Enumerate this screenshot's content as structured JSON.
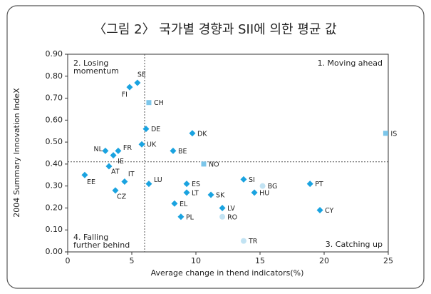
{
  "chart_data": {
    "type": "scatter",
    "title": "〈그림 2〉 국가별 경향과 SII에 의한 평균 값",
    "x_label": "Average change in thend indicators(%)",
    "y_label": "2004 Summary Innovation IndeX",
    "xlim": [
      0,
      25
    ],
    "xticks": [
      0,
      5,
      10,
      15,
      20,
      25
    ],
    "ylim": [
      0,
      0.9
    ],
    "yticks": [
      {
        "value": 0,
        "label": "0.00"
      },
      {
        "value": 0.1,
        "label": "0.10"
      },
      {
        "value": 0.2,
        "label": "0.20"
      },
      {
        "value": 0.3,
        "label": "0.30"
      },
      {
        "value": 0.4,
        "label": "0.40"
      },
      {
        "value": 0.5,
        "label": "0.50"
      },
      {
        "value": 0.6,
        "label": "0.60"
      },
      {
        "value": 0.7,
        "label": "0.70"
      },
      {
        "value": 0.8,
        "label": "0.80"
      },
      {
        "value": 0.9,
        "label": "0.90"
      }
    ],
    "reference_lines": {
      "x": 6,
      "y": 0.41
    },
    "annotations": [
      {
        "lines": [
          "2. Losing",
          "momentum"
        ],
        "corner": "top-left"
      },
      {
        "lines": [
          "1. Moving ahead"
        ],
        "corner": "top-right"
      },
      {
        "lines": [
          "4. Falling",
          "further behind"
        ],
        "corner": "bottom-left"
      },
      {
        "lines": [
          "3. Catching up"
        ],
        "corner": "bottom-right"
      }
    ],
    "series": [
      {
        "marker": "diamond",
        "color": "#1aa3e0",
        "labels": [
          "SE",
          "FI",
          "DE",
          "DK",
          "UK",
          "BE",
          "NL",
          "FR",
          "IE",
          "AT",
          "EE",
          "IT",
          "SI",
          "PT",
          "LU",
          "ES",
          "CZ",
          "LT",
          "HU",
          "SK",
          "EL",
          "LV",
          "CY",
          "PL"
        ],
        "x": [
          5.44,
          4.83,
          6.11,
          9.72,
          5.78,
          8.22,
          2.94,
          3.94,
          3.56,
          3.22,
          1.33,
          4.44,
          13.72,
          18.9,
          6.33,
          9.28,
          3.72,
          9.28,
          14.56,
          11.17,
          8.33,
          12.06,
          19.67,
          8.83
        ],
        "values": [
          0.77,
          0.75,
          0.56,
          0.54,
          0.49,
          0.46,
          0.46,
          0.46,
          0.44,
          0.39,
          0.35,
          0.32,
          0.33,
          0.31,
          0.31,
          0.31,
          0.28,
          0.27,
          0.27,
          0.26,
          0.22,
          0.2,
          0.19,
          0.16
        ]
      },
      {
        "marker": "square",
        "color": "#7cc6ea",
        "labels": [
          "CH",
          "IS",
          "NO"
        ],
        "x": [
          6.33,
          24.8,
          10.61
        ],
        "values": [
          0.68,
          0.54,
          0.4
        ]
      },
      {
        "marker": "circle",
        "color": "#c2e3f3",
        "labels": [
          "BG",
          "RO",
          "TR"
        ],
        "x": [
          15.2,
          12.06,
          13.72
        ],
        "values": [
          0.3,
          0.16,
          0.05
        ]
      }
    ]
  }
}
